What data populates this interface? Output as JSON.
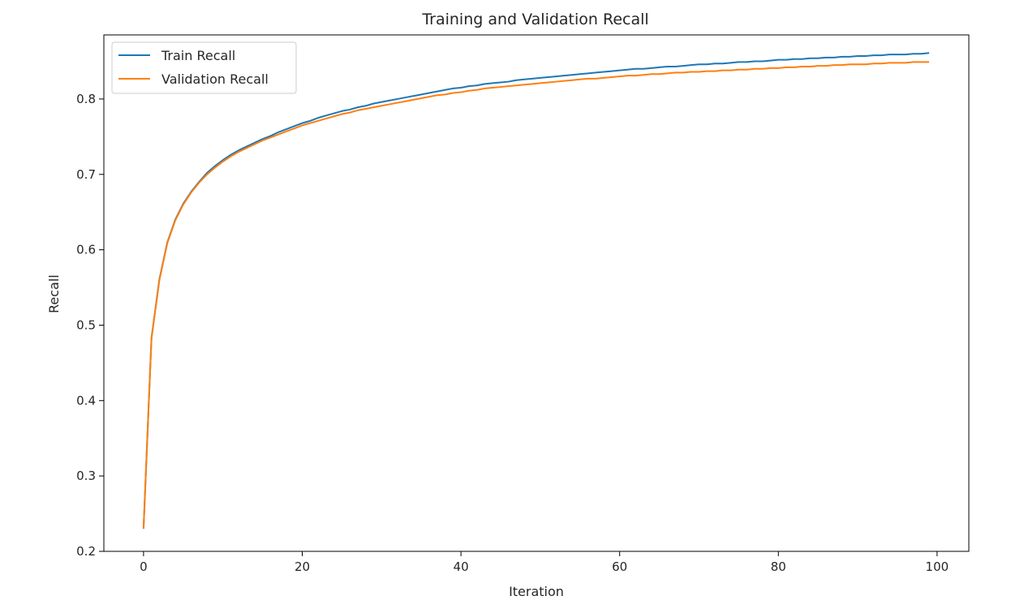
{
  "chart_data": {
    "type": "line",
    "title": "Training and Validation Recall",
    "xlabel": "Iteration",
    "ylabel": "Recall",
    "xlim": [
      -5,
      104
    ],
    "ylim": [
      0.2,
      0.885
    ],
    "xticks": [
      0,
      20,
      40,
      60,
      80,
      100
    ],
    "yticks": [
      0.2,
      0.3,
      0.4,
      0.5,
      0.6,
      0.7,
      0.8
    ],
    "xtick_labels": [
      "0",
      "20",
      "40",
      "60",
      "80",
      "100"
    ],
    "ytick_labels": [
      "0.2",
      "0.3",
      "0.4",
      "0.5",
      "0.6",
      "0.7",
      "0.8"
    ],
    "grid": false,
    "legend_position": "top-left",
    "x": [
      0,
      1,
      2,
      3,
      4,
      5,
      6,
      7,
      8,
      9,
      10,
      11,
      12,
      13,
      14,
      15,
      16,
      17,
      18,
      19,
      20,
      21,
      22,
      23,
      24,
      25,
      26,
      27,
      28,
      29,
      30,
      31,
      32,
      33,
      34,
      35,
      36,
      37,
      38,
      39,
      40,
      41,
      42,
      43,
      44,
      45,
      46,
      47,
      48,
      49,
      50,
      51,
      52,
      53,
      54,
      55,
      56,
      57,
      58,
      59,
      60,
      61,
      62,
      63,
      64,
      65,
      66,
      67,
      68,
      69,
      70,
      71,
      72,
      73,
      74,
      75,
      76,
      77,
      78,
      79,
      80,
      81,
      82,
      83,
      84,
      85,
      86,
      87,
      88,
      89,
      90,
      91,
      92,
      93,
      94,
      95,
      96,
      97,
      98,
      99
    ],
    "series": [
      {
        "name": "Train Recall",
        "color": "#1f77b4",
        "values": [
          0.23,
          0.483,
          0.561,
          0.61,
          0.64,
          0.661,
          0.677,
          0.69,
          0.702,
          0.711,
          0.719,
          0.726,
          0.732,
          0.737,
          0.742,
          0.747,
          0.751,
          0.756,
          0.76,
          0.764,
          0.768,
          0.771,
          0.775,
          0.778,
          0.781,
          0.784,
          0.786,
          0.789,
          0.791,
          0.794,
          0.796,
          0.798,
          0.8,
          0.802,
          0.804,
          0.806,
          0.808,
          0.81,
          0.812,
          0.814,
          0.815,
          0.817,
          0.818,
          0.82,
          0.821,
          0.822,
          0.823,
          0.825,
          0.826,
          0.827,
          0.828,
          0.829,
          0.83,
          0.831,
          0.832,
          0.833,
          0.834,
          0.835,
          0.836,
          0.837,
          0.838,
          0.839,
          0.84,
          0.84,
          0.841,
          0.842,
          0.843,
          0.843,
          0.844,
          0.845,
          0.846,
          0.846,
          0.847,
          0.847,
          0.848,
          0.849,
          0.849,
          0.85,
          0.85,
          0.851,
          0.852,
          0.852,
          0.853,
          0.853,
          0.854,
          0.854,
          0.855,
          0.855,
          0.856,
          0.856,
          0.857,
          0.857,
          0.858,
          0.858,
          0.859,
          0.859,
          0.859,
          0.86,
          0.86,
          0.861
        ]
      },
      {
        "name": "Validation Recall",
        "color": "#ff7f0e",
        "values": [
          0.23,
          0.482,
          0.56,
          0.609,
          0.639,
          0.66,
          0.676,
          0.689,
          0.7,
          0.709,
          0.717,
          0.724,
          0.73,
          0.735,
          0.74,
          0.745,
          0.749,
          0.753,
          0.757,
          0.761,
          0.765,
          0.768,
          0.771,
          0.774,
          0.777,
          0.78,
          0.782,
          0.785,
          0.787,
          0.789,
          0.791,
          0.793,
          0.795,
          0.797,
          0.799,
          0.801,
          0.803,
          0.805,
          0.806,
          0.808,
          0.809,
          0.811,
          0.812,
          0.814,
          0.815,
          0.816,
          0.817,
          0.818,
          0.819,
          0.82,
          0.821,
          0.822,
          0.823,
          0.824,
          0.825,
          0.826,
          0.827,
          0.827,
          0.828,
          0.829,
          0.83,
          0.831,
          0.831,
          0.832,
          0.833,
          0.833,
          0.834,
          0.835,
          0.835,
          0.836,
          0.836,
          0.837,
          0.837,
          0.838,
          0.838,
          0.839,
          0.839,
          0.84,
          0.84,
          0.841,
          0.841,
          0.842,
          0.842,
          0.843,
          0.843,
          0.844,
          0.844,
          0.845,
          0.845,
          0.846,
          0.846,
          0.846,
          0.847,
          0.847,
          0.848,
          0.848,
          0.848,
          0.849,
          0.849,
          0.849
        ]
      }
    ]
  }
}
